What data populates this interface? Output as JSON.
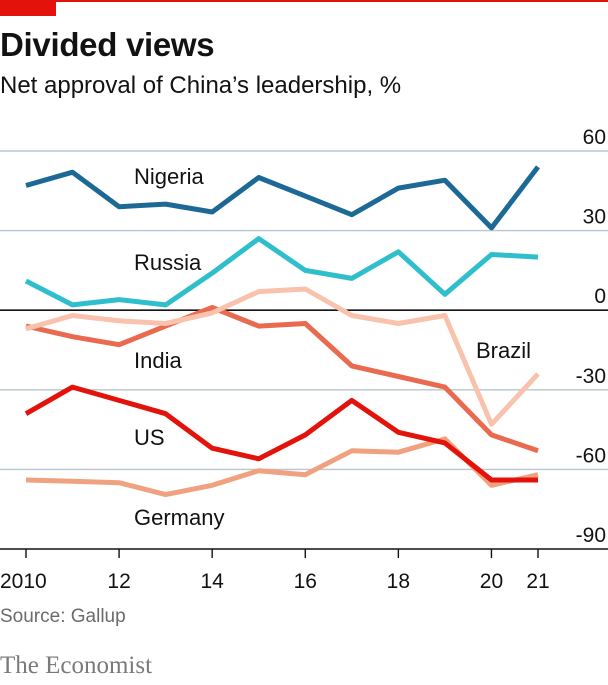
{
  "header": {
    "title": "Divided views",
    "subtitle": "Net approval of China’s leadership, %"
  },
  "footer": {
    "source": "Source: Gallup",
    "brand": "The Economist"
  },
  "colors": {
    "accent": "#e3120b",
    "grid": "#b7c6cf",
    "zero_line": "#121212"
  },
  "chart_data": {
    "type": "line",
    "x": [
      2010,
      2011,
      2012,
      2013,
      2014,
      2015,
      2016,
      2017,
      2018,
      2019,
      2020,
      2021
    ],
    "x_tick_values": [
      2010,
      2012,
      2014,
      2016,
      2018,
      2020,
      2021
    ],
    "x_tick_labels": [
      "2010",
      "12",
      "14",
      "16",
      "18",
      "20",
      "21"
    ],
    "ylim": [
      -90,
      60
    ],
    "y_ticks": [
      60,
      30,
      0,
      -30,
      -60,
      -90
    ],
    "y_tick_labels": [
      "60",
      "30",
      "0",
      "-30",
      "-60",
      "-90"
    ],
    "grid": true,
    "series": [
      {
        "name": "Germany",
        "color": "#f0a17f",
        "values": [
          -64,
          -64.5,
          -65,
          -69.5,
          -66,
          -60.5,
          -62,
          -53,
          -53.5,
          -48.5,
          -66,
          -62
        ]
      },
      {
        "name": "US",
        "color": "#e3120b",
        "values": [
          -39,
          -29,
          -34,
          -39,
          -52,
          -56,
          -47,
          -34,
          -46,
          -50,
          -64,
          -64
        ]
      },
      {
        "name": "India",
        "color": "#ea6a4f",
        "values": [
          -6,
          -10,
          -13,
          -6,
          1,
          -6,
          -5,
          -21,
          -25,
          -29,
          -47,
          -53
        ]
      },
      {
        "name": "Brazil",
        "color": "#f8c2ad",
        "values": [
          -7,
          -2,
          -4,
          -5,
          -1,
          7,
          8,
          -2,
          -5,
          -2,
          -43,
          -24
        ]
      },
      {
        "name": "Russia",
        "color": "#2fbfcc",
        "values": [
          11,
          2,
          4,
          2,
          14,
          27,
          15,
          12,
          22,
          6,
          21,
          20
        ]
      },
      {
        "name": "Nigeria",
        "color": "#1d6996",
        "values": [
          47,
          52,
          39,
          40,
          37,
          50,
          43,
          36,
          46,
          49,
          31,
          54
        ]
      }
    ]
  }
}
